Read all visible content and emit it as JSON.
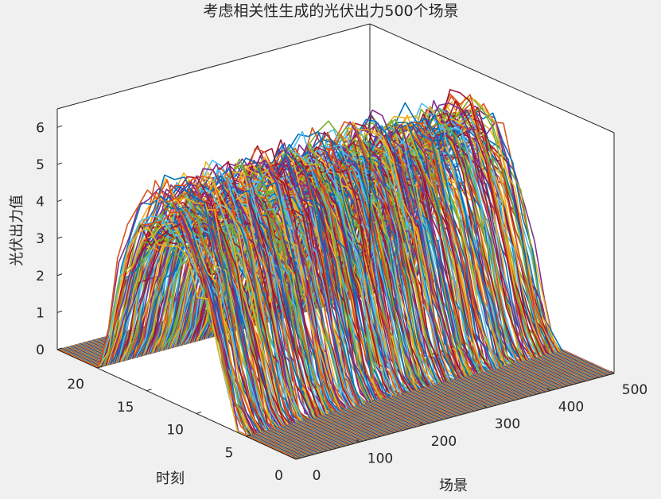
{
  "chart_data": {
    "type": "line",
    "title": "考虑相关性生成的光伏出力500个场景",
    "xlabel": "场景",
    "ylabel": "时刻",
    "zlabel": "光伏出力值",
    "x_ticks": [
      0,
      100,
      200,
      300,
      400,
      500
    ],
    "y_ticks": [
      0,
      5,
      10,
      15,
      20
    ],
    "z_ticks": [
      0,
      1,
      2,
      3,
      4,
      5,
      6
    ],
    "xlim": [
      0,
      500
    ],
    "ylim": [
      0,
      24
    ],
    "zlim": [
      0,
      6.5
    ],
    "series_count": 500,
    "hours": [
      0,
      1,
      2,
      3,
      4,
      5,
      6,
      7,
      8,
      9,
      10,
      11,
      12,
      13,
      14,
      15,
      16,
      17,
      18,
      19,
      20,
      21,
      22,
      23,
      24
    ],
    "mean_profile": [
      0,
      0,
      0,
      0,
      0,
      0,
      0.15,
      0.9,
      1.9,
      2.9,
      3.6,
      4.2,
      4.5,
      4.6,
      4.6,
      4.4,
      4.0,
      3.3,
      2.3,
      1.0,
      0,
      0,
      0,
      0,
      0
    ],
    "colors": [
      "#0072BD",
      "#D95319",
      "#EDB120",
      "#7E2F8E",
      "#77AC30",
      "#4DBEEE",
      "#A2142F"
    ],
    "grid": false,
    "legend": "none"
  }
}
